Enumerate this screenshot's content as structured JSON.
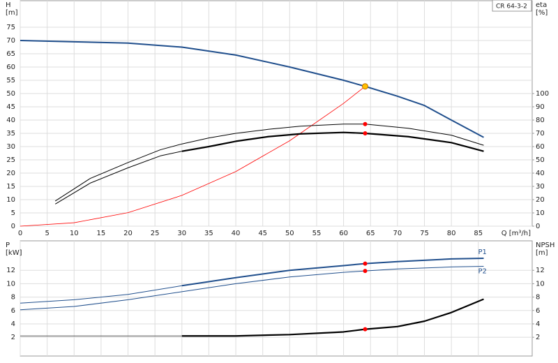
{
  "chart_data": [
    {
      "type": "line",
      "annotation": "CR 64-3-2",
      "ylabel": "H",
      "yunit": "[m]",
      "y2label": "eta",
      "y2unit": "[%]",
      "xlabel": "Q [m³/h]",
      "xlim": [
        0,
        95
      ],
      "xticks": [
        0,
        5,
        10,
        15,
        20,
        25,
        30,
        35,
        40,
        45,
        50,
        55,
        60,
        65,
        70,
        75,
        80,
        85
      ],
      "xtick_labels": true,
      "ylim": [
        0,
        85
      ],
      "yticks": [
        0,
        5,
        10,
        15,
        20,
        25,
        30,
        35,
        40,
        45,
        50,
        55,
        60,
        65,
        70,
        75
      ],
      "y2lim": [
        0,
        170
      ],
      "y2ticks": [
        0,
        10,
        20,
        30,
        40,
        50,
        60,
        70,
        80,
        90,
        100
      ],
      "grid": true,
      "series": [
        {
          "color": "#1f4e8c",
          "width": 2,
          "axis": "y",
          "x": [
            0,
            10,
            20,
            30,
            40,
            50,
            60,
            64,
            70,
            75,
            80,
            86
          ],
          "values": [
            70,
            69.5,
            69,
            67.5,
            64.5,
            60,
            55,
            52.7,
            49,
            45.5,
            40,
            33.5
          ]
        },
        {
          "color": "#ff0000",
          "width": 0.8,
          "axis": "y",
          "x": [
            0,
            10,
            20,
            30,
            40,
            50,
            60,
            64
          ],
          "values": [
            0,
            1.3,
            5.1,
            11.6,
            20.6,
            32.2,
            46.3,
            52.7
          ]
        },
        {
          "color": "#000000",
          "width": 1,
          "axis": "y2",
          "x": [
            6.5,
            13,
            20,
            26,
            30,
            35,
            40,
            46,
            52,
            60,
            64,
            72,
            80,
            86
          ],
          "values": [
            19,
            36,
            48,
            57.6,
            62,
            66.5,
            70,
            73,
            75.4,
            77,
            77,
            73.8,
            68.6,
            61
          ]
        },
        {
          "color": "#000000",
          "width": 1,
          "axis": "y2",
          "x": [
            6.5,
            13,
            20,
            26,
            30
          ],
          "values": [
            16.7,
            32.5,
            44,
            53,
            56.5
          ]
        },
        {
          "color": "#000000",
          "width": 2.2,
          "axis": "y2",
          "x": [
            30,
            35,
            40,
            46,
            52,
            60,
            64,
            72,
            80,
            86
          ],
          "values": [
            56.5,
            60,
            64,
            67.5,
            69.6,
            70.7,
            70,
            67.5,
            63,
            56.5
          ]
        }
      ],
      "markers": [
        {
          "x": 64,
          "y": 52.7,
          "axis": "y",
          "color": "#ffc000"
        },
        {
          "x": 64,
          "y": 77,
          "axis": "y2",
          "color": "#ff0000"
        },
        {
          "x": 64,
          "y": 70,
          "axis": "y2",
          "color": "#ff0000"
        }
      ]
    },
    {
      "type": "line",
      "ylabel": "P",
      "yunit": "[kW]",
      "y2label": "NPSH",
      "y2unit": "[m]",
      "xlim": [
        0,
        95
      ],
      "xticks": [
        0,
        5,
        10,
        15,
        20,
        25,
        30,
        35,
        40,
        45,
        50,
        55,
        60,
        65,
        70,
        75,
        80,
        85
      ],
      "xtick_labels": false,
      "ylim": [
        -0.8,
        16.4
      ],
      "yticks": [
        2,
        4,
        6,
        8,
        10,
        12
      ],
      "y2lim": [
        -0.8,
        16.4
      ],
      "y2ticks": [
        2,
        4,
        6,
        8,
        10,
        12
      ],
      "grid": true,
      "series": [
        {
          "color": "#1f4e8c",
          "width": 1,
          "axis": "y",
          "x": [
            0,
            10,
            20,
            30
          ],
          "values": [
            7.1,
            7.6,
            8.4,
            9.7
          ]
        },
        {
          "name": "P1",
          "label_pos": "above",
          "color": "#1f4e8c",
          "width": 2,
          "axis": "y",
          "x": [
            30,
            40,
            50,
            60,
            64,
            70,
            80,
            86
          ],
          "values": [
            9.7,
            10.9,
            12.0,
            12.7,
            13.0,
            13.3,
            13.7,
            13.8
          ]
        },
        {
          "name": "P2",
          "label_pos": "below",
          "color": "#1f4e8c",
          "width": 1,
          "axis": "y",
          "x": [
            0,
            10,
            20,
            30,
            40,
            50,
            60,
            64,
            70,
            80,
            86
          ],
          "values": [
            6.1,
            6.6,
            7.6,
            8.8,
            10.0,
            11.0,
            11.7,
            11.9,
            12.2,
            12.5,
            12.6
          ]
        },
        {
          "color": "#555555",
          "width": 1,
          "axis": "y2",
          "x": [
            0,
            10,
            20,
            30
          ],
          "values": [
            2.2,
            2.2,
            2.2,
            2.2
          ]
        },
        {
          "color": "#000000",
          "width": 2.2,
          "axis": "y2",
          "x": [
            30,
            40,
            50,
            60,
            64,
            70,
            75,
            80,
            86
          ],
          "values": [
            2.2,
            2.2,
            2.4,
            2.8,
            3.2,
            3.6,
            4.4,
            5.7,
            7.7
          ]
        }
      ],
      "markers": [
        {
          "x": 64,
          "y": 13.0,
          "axis": "y",
          "color": "#ff0000"
        },
        {
          "x": 64,
          "y": 11.9,
          "axis": "y",
          "color": "#ff0000"
        },
        {
          "x": 64,
          "y": 3.2,
          "axis": "y2",
          "color": "#ff0000"
        }
      ]
    }
  ]
}
